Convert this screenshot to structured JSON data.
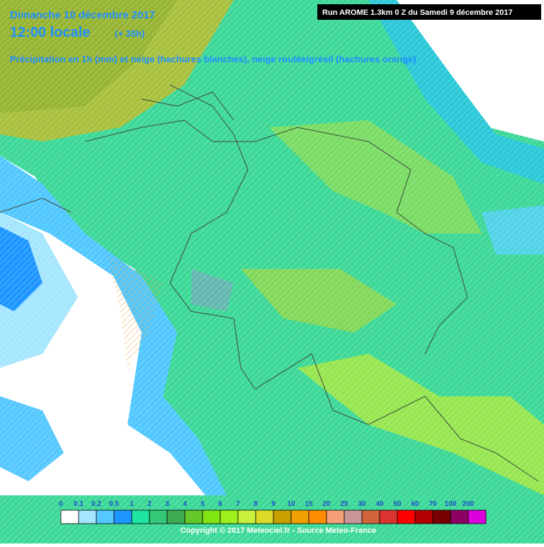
{
  "header": {
    "date": "Dimanche 10 décembre 2017",
    "time": "12:00 locale",
    "lead": "(+ 35h)",
    "subtitle": "Précipitation en 1h (mm) et neige (hachures blanches), neige roulée/grésil (hachures orange)",
    "run": "Run AROME 1.3km 0 Z du Samedi 9 décembre 2017"
  },
  "legend": {
    "items": [
      {
        "label": "0",
        "color": "#ffffff"
      },
      {
        "label": "0.1",
        "color": "#a5e6ff"
      },
      {
        "label": "0.2",
        "color": "#55c8ff"
      },
      {
        "label": "0.5",
        "color": "#1e96ff"
      },
      {
        "label": "1",
        "color": "#1ee6a0"
      },
      {
        "label": "2",
        "color": "#32c878"
      },
      {
        "label": "3",
        "color": "#3caa50"
      },
      {
        "label": "4",
        "color": "#64c828"
      },
      {
        "label": "5",
        "color": "#82e614"
      },
      {
        "label": "6",
        "color": "#a0f01e"
      },
      {
        "label": "7",
        "color": "#c8f03c"
      },
      {
        "label": "8",
        "color": "#dcdc28"
      },
      {
        "label": "9",
        "color": "#c8a000"
      },
      {
        "label": "10",
        "color": "#f0a000"
      },
      {
        "label": "15",
        "color": "#ff8c00"
      },
      {
        "label": "20",
        "color": "#f5a078"
      },
      {
        "label": "25",
        "color": "#c89696"
      },
      {
        "label": "30",
        "color": "#d2643c"
      },
      {
        "label": "40",
        "color": "#dc3232"
      },
      {
        "label": "50",
        "color": "#ff0000"
      },
      {
        "label": "60",
        "color": "#b40000"
      },
      {
        "label": "70",
        "color": "#780000"
      },
      {
        "label": "100",
        "color": "#8c0064"
      },
      {
        "label": "200",
        "color": "#dc00dc"
      }
    ]
  },
  "footer": {
    "copyright": "Copyright © 2017 Meteociel.fr - Source Meteo-France"
  }
}
